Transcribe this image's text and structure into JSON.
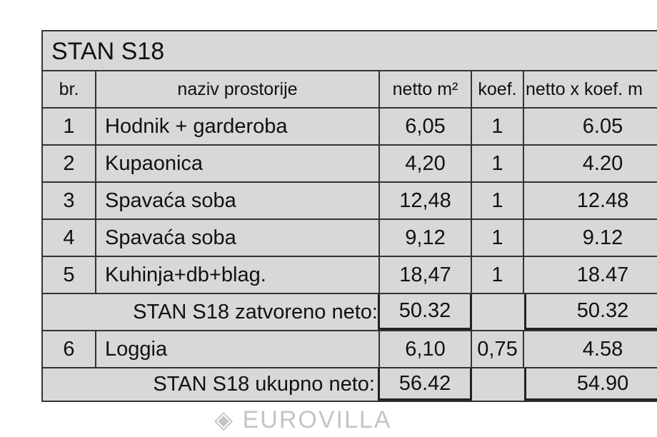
{
  "title": "STAN S18",
  "headers": [
    "br.",
    "naziv prostorije",
    "netto m²",
    "koef.",
    "netto x koef. m"
  ],
  "rows": [
    {
      "br": "1",
      "naziv": "Hodnik + garderoba",
      "netto": "6,05",
      "koef": "1",
      "netto_koef": "6.05"
    },
    {
      "br": "2",
      "naziv": "Kupaonica",
      "netto": "4,20",
      "koef": "1",
      "netto_koef": "4.20"
    },
    {
      "br": "3",
      "naziv": "Spavaća soba",
      "netto": "12,48",
      "koef": "1",
      "netto_koef": "12.48"
    },
    {
      "br": "4",
      "naziv": "Spavaća soba",
      "netto": "9,12",
      "koef": "1",
      "netto_koef": "9.12"
    },
    {
      "br": "5",
      "naziv": "Kuhinja+db+blag.",
      "netto": "18,47",
      "koef": "1",
      "netto_koef": "18.47"
    }
  ],
  "subtotal": {
    "label": "STAN S18 zatvoreno neto:",
    "netto": "50.32",
    "netto_koef": "50.32"
  },
  "loggia": {
    "br": "6",
    "naziv": "Loggia",
    "netto": "6,10",
    "koef": "0,75",
    "netto_koef": "4.58"
  },
  "total": {
    "label": "STAN S18 ukupno neto:",
    "netto": "56.42",
    "netto_koef": "54.90"
  },
  "watermark": "EUROVILLA"
}
